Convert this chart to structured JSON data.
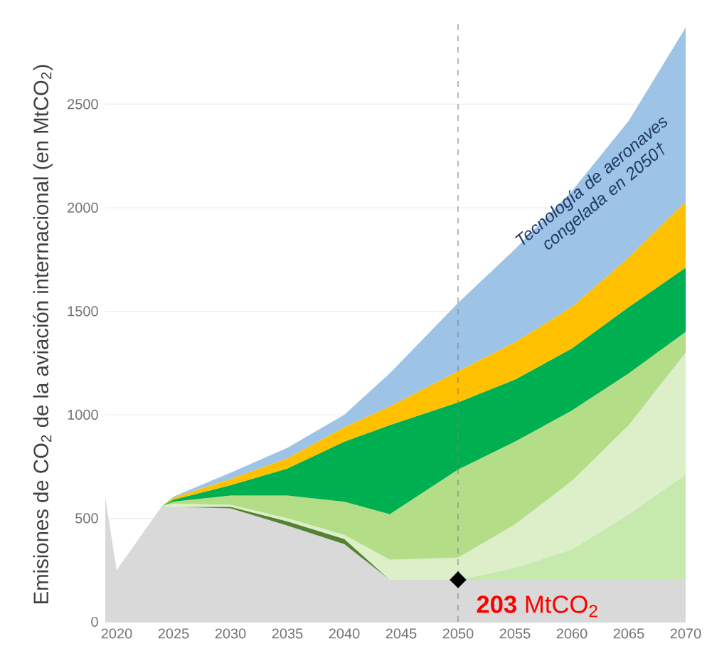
{
  "chart_data": {
    "type": "area",
    "stacked": true,
    "ylabel": "Emisiones de CO$_{2}$ de la aviación internacional (en MtCO$_{2}$)",
    "x": [
      2019,
      2020,
      2024,
      2025,
      2030,
      2035,
      2040,
      2044,
      2050,
      2055,
      2060,
      2065,
      2070
    ],
    "xlim": [
      2019,
      2070
    ],
    "xticks": [
      2020,
      2025,
      2030,
      2035,
      2040,
      2045,
      2050,
      2055,
      2060,
      2065,
      2070
    ],
    "ylim": [
      0,
      2900
    ],
    "yticks": [
      0,
      500,
      1000,
      1500,
      2000,
      2500
    ],
    "grid": "y",
    "series": [
      {
        "color": "#d9d9d9",
        "values": [
          600,
          250,
          560,
          555,
          548,
          465,
          375,
          203,
          203,
          203,
          203,
          203,
          203
        ]
      },
      {
        "color": "#c6e9ad",
        "values": [
          null,
          null,
          null,
          null,
          null,
          null,
          null,
          null,
          0,
          57,
          147,
          317,
          509
        ]
      },
      {
        "color": "#548235",
        "values": [
          null,
          null,
          null,
          0,
          8,
          20,
          25,
          0,
          null,
          null,
          null,
          null,
          null
        ]
      },
      {
        "color": "#dcefc8",
        "values": [
          null,
          null,
          0,
          15,
          9,
          15,
          20,
          97,
          107,
          210,
          330,
          430,
          588
        ]
      },
      {
        "color": "#b4dd88",
        "values": [
          null,
          null,
          0,
          10,
          45,
          110,
          160,
          220,
          425,
          400,
          340,
          250,
          100
        ]
      },
      {
        "color": "#00b050",
        "values": [
          null,
          null,
          0,
          10,
          50,
          130,
          290,
          430,
          325,
          300,
          300,
          320,
          310
        ]
      },
      {
        "color": "#ffc000",
        "values": [
          null,
          null,
          0,
          10,
          30,
          50,
          70,
          90,
          150,
          180,
          200,
          240,
          320
        ]
      },
      {
        "color": "#9dc3e6",
        "values": [
          null,
          null,
          0,
          5,
          30,
          50,
          60,
          160,
          330,
          450,
          560,
          660,
          840
        ]
      }
    ],
    "ref_lines": [
      {
        "axis": "x",
        "value": 2050,
        "color": "#7f7f7f",
        "line_style": "dashed"
      }
    ],
    "annotations": [
      {
        "text": "**203** MtCO$_{2}$",
        "x": 2050,
        "y": 203
      },
      "Tecnología de aeronaves congelada en 2050†"
    ]
  }
}
